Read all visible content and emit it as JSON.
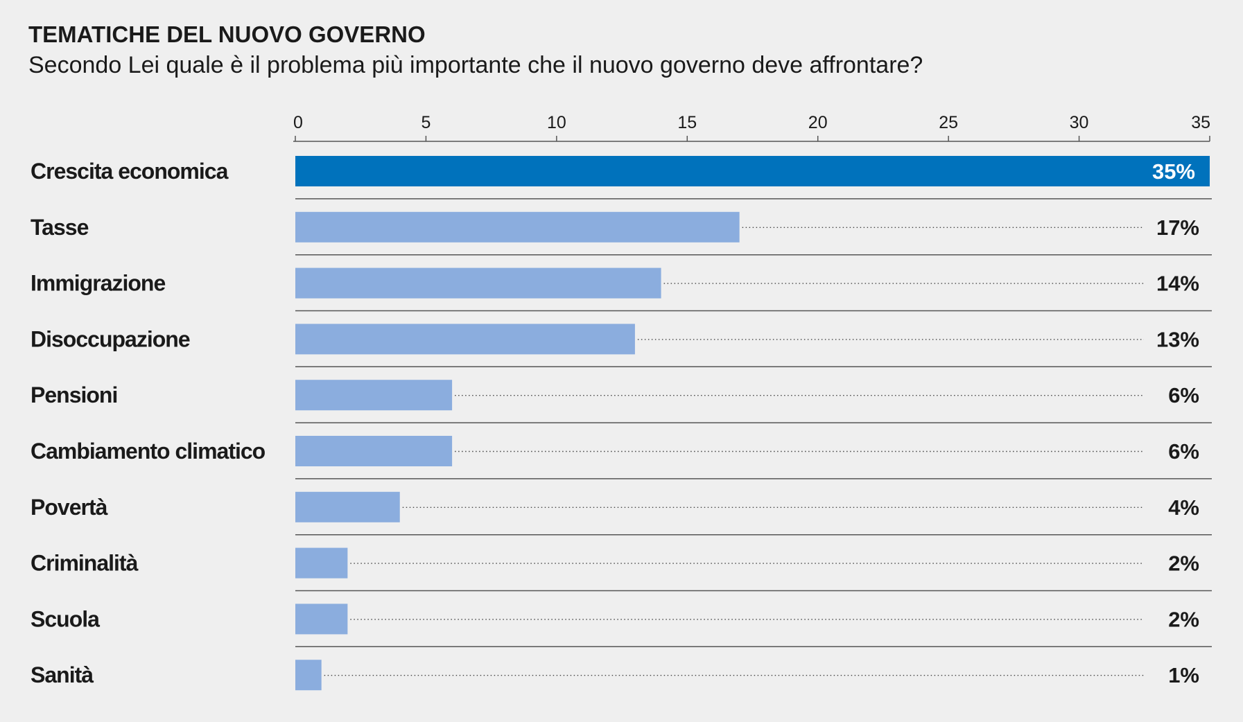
{
  "header": {
    "title": "TEMATICHE DEL NUOVO GOVERNO",
    "subtitle": "Secondo Lei quale è il problema più importante che il nuovo governo deve affrontare?"
  },
  "colors": {
    "background": "#efefef",
    "highlight_bar": "#0072bc",
    "bar": "#8badde",
    "text": "#1a1a1a",
    "rule": "#555555"
  },
  "chart_data": {
    "type": "bar",
    "orientation": "horizontal",
    "title": "TEMATICHE DEL NUOVO GOVERNO",
    "subtitle": "Secondo Lei quale è il problema più importante che il nuovo governo deve affrontare?",
    "xlim": [
      0,
      35
    ],
    "xticks": [
      0,
      5,
      10,
      15,
      20,
      25,
      30,
      35
    ],
    "categories": [
      "Crescita economica",
      "Tasse",
      "Immigrazione",
      "Disoccupazione",
      "Pensioni",
      "Cambiamento climatico",
      "Povertà",
      "Criminalità",
      "Scuola",
      "Sanità"
    ],
    "values": [
      35,
      17,
      14,
      13,
      6,
      6,
      4,
      2,
      2,
      1
    ],
    "value_labels": [
      "35%",
      "17%",
      "14%",
      "13%",
      "6%",
      "6%",
      "4%",
      "2%",
      "2%",
      "1%"
    ],
    "highlighted": "Crescita economica",
    "grid": false,
    "axis_position": "top"
  }
}
